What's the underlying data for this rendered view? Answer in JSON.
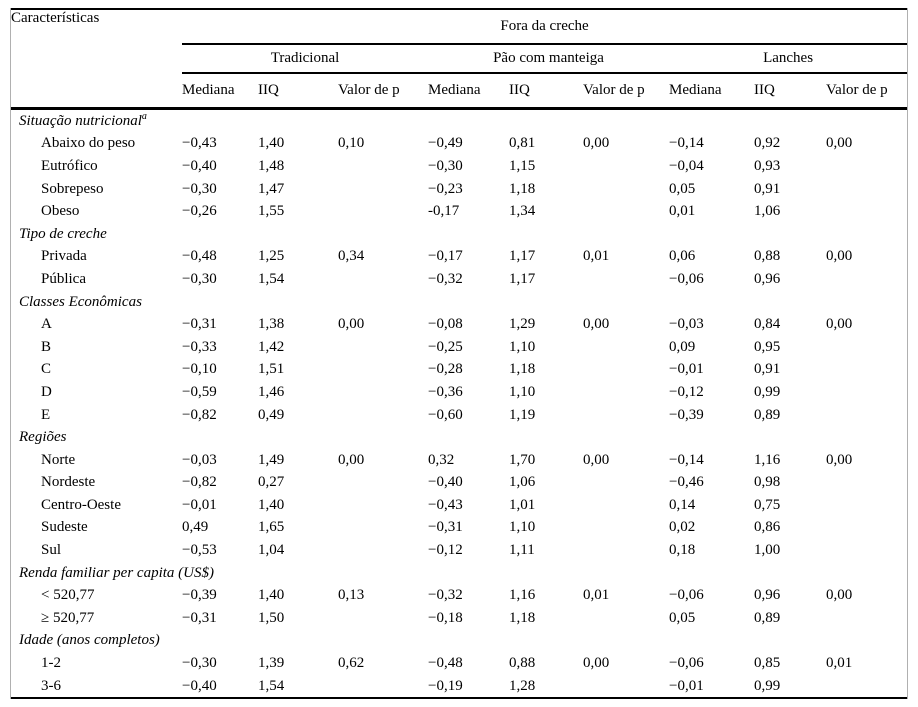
{
  "table": {
    "corner_header": "Características",
    "span_header": "Fora da creche",
    "group_headers": [
      "Tradicional",
      "Pão com manteiga",
      "Lanches"
    ],
    "sub_headers": [
      "Mediana",
      "IIQ",
      "Valor de p",
      "Mediana",
      "IIQ",
      "Valor de p",
      "Mediana",
      "IIQ",
      "Valor de p"
    ],
    "sections": [
      {
        "title": "Situação nutricional",
        "sup": "a",
        "rows": [
          {
            "label": "Abaixo do peso",
            "values": [
              "−0,43",
              "1,40",
              "0,10",
              "−0,49",
              "0,81",
              "0,00",
              "−0,14",
              "0,92",
              "0,00"
            ]
          },
          {
            "label": "Eutrófico",
            "values": [
              "−0,40",
              "1,48",
              "",
              "−0,30",
              "1,15",
              "",
              "−0,04",
              "0,93",
              ""
            ]
          },
          {
            "label": "Sobrepeso",
            "values": [
              "−0,30",
              "1,47",
              "",
              "−0,23",
              "1,18",
              "",
              "0,05",
              "0,91",
              ""
            ]
          },
          {
            "label": "Obeso",
            "values": [
              "−0,26",
              "1,55",
              "",
              "-0,17",
              "1,34",
              "",
              "0,01",
              "1,06",
              ""
            ]
          }
        ]
      },
      {
        "title": "Tipo de creche",
        "sup": "",
        "rows": [
          {
            "label": "Privada",
            "values": [
              "−0,48",
              "1,25",
              "0,34",
              "−0,17",
              "1,17",
              "0,01",
              "0,06",
              "0,88",
              "0,00"
            ]
          },
          {
            "label": "Pública",
            "values": [
              "−0,30",
              "1,54",
              "",
              "−0,32",
              "1,17",
              "",
              "−0,06",
              "0,96",
              ""
            ]
          }
        ]
      },
      {
        "title": "Classes Econômicas",
        "sup": "",
        "rows": [
          {
            "label": "A",
            "values": [
              "−0,31",
              "1,38",
              "0,00",
              "−0,08",
              "1,29",
              "0,00",
              "−0,03",
              "0,84",
              "0,00"
            ]
          },
          {
            "label": "B",
            "values": [
              "−0,33",
              "1,42",
              "",
              "−0,25",
              "1,10",
              "",
              "0,09",
              "0,95",
              ""
            ]
          },
          {
            "label": "C",
            "values": [
              "−0,10",
              "1,51",
              "",
              "−0,28",
              "1,18",
              "",
              "−0,01",
              "0,91",
              ""
            ]
          },
          {
            "label": "D",
            "values": [
              "−0,59",
              "1,46",
              "",
              "−0,36",
              "1,10",
              "",
              "−0,12",
              "0,99",
              ""
            ]
          },
          {
            "label": "E",
            "values": [
              "−0,82",
              "0,49",
              "",
              "−0,60",
              "1,19",
              "",
              "−0,39",
              "0,89",
              ""
            ]
          }
        ]
      },
      {
        "title": "Regiões",
        "sup": "",
        "rows": [
          {
            "label": "Norte",
            "values": [
              "−0,03",
              "1,49",
              "0,00",
              "0,32",
              "1,70",
              "0,00",
              "−0,14",
              "1,16",
              "0,00"
            ]
          },
          {
            "label": "Nordeste",
            "values": [
              "−0,82",
              "0,27",
              "",
              "−0,40",
              "1,06",
              "",
              "−0,46",
              "0,98",
              ""
            ]
          },
          {
            "label": "Centro-Oeste",
            "values": [
              "−0,01",
              "1,40",
              "",
              "−0,43",
              "1,01",
              "",
              "0,14",
              "0,75",
              ""
            ]
          },
          {
            "label": "Sudeste",
            "values": [
              "0,49",
              "1,65",
              "",
              "−0,31",
              "1,10",
              "",
              "0,02",
              "0,86",
              ""
            ]
          },
          {
            "label": "Sul",
            "values": [
              "−0,53",
              "1,04",
              "",
              "−0,12",
              "1,11",
              "",
              "0,18",
              "1,00",
              ""
            ]
          }
        ]
      },
      {
        "title": "Renda familiar per capita (US$)",
        "sup": "",
        "rows": [
          {
            "label": "< 520,77",
            "values": [
              "−0,39",
              "1,40",
              "0,13",
              "−0,32",
              "1,16",
              "0,01",
              "−0,06",
              "0,96",
              "0,00"
            ]
          },
          {
            "label": "≥ 520,77",
            "values": [
              "−0,31",
              "1,50",
              "",
              "−0,18",
              "1,18",
              "",
              "0,05",
              "0,89",
              ""
            ]
          }
        ]
      },
      {
        "title": "Idade (anos completos)",
        "sup": "",
        "rows": [
          {
            "label": "1-2",
            "values": [
              "−0,30",
              "1,39",
              "0,62",
              "−0,48",
              "0,88",
              "0,00",
              "−0,06",
              "0,85",
              "0,01"
            ]
          },
          {
            "label": "3-6",
            "values": [
              "−0,40",
              "1,54",
              "",
              "−0,19",
              "1,28",
              "",
              "−0,01",
              "0,99",
              ""
            ]
          }
        ]
      }
    ]
  }
}
